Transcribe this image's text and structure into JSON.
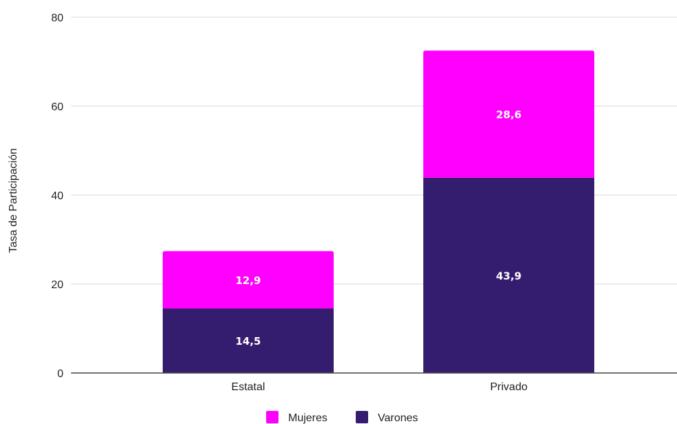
{
  "chart_data": {
    "type": "bar",
    "stacked": true,
    "categories": [
      "Estatal",
      "Privado"
    ],
    "series": [
      {
        "name": "Varones",
        "values": [
          14.5,
          43.9
        ],
        "labels": [
          "14,5",
          "43,9"
        ],
        "color": "#341c6e"
      },
      {
        "name": "Mujeres",
        "values": [
          12.9,
          28.6
        ],
        "labels": [
          "12,9",
          "28,6"
        ],
        "color": "#ff00ff"
      }
    ],
    "title": "",
    "xlabel": "",
    "ylabel": "Tasa de Participación",
    "ylim": [
      0,
      80
    ],
    "yticks": [
      0,
      20,
      40,
      60,
      80
    ],
    "grid": true,
    "gridline_color": "#d9d9d9",
    "axis_color": "#444444",
    "legend": {
      "placement": "bottom",
      "entries": [
        {
          "name": "Mujeres",
          "color": "#ff00ff"
        },
        {
          "name": "Varones",
          "color": "#341c6e"
        }
      ]
    }
  }
}
